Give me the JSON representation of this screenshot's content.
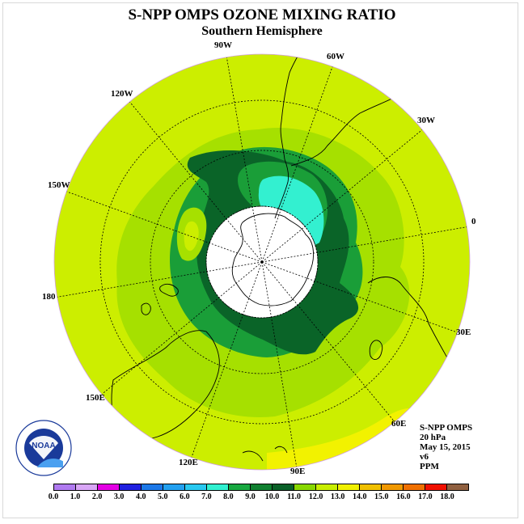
{
  "title": "S-NPP OMPS OZONE MIXING RATIO",
  "subtitle": "Southern Hemisphere",
  "longitude_labels": [
    "90W",
    "60W",
    "30W",
    "0",
    "30E",
    "60E",
    "90E",
    "120E",
    "150E",
    "180",
    "150W",
    "120W"
  ],
  "info": {
    "instrument": "S-NPP OMPS",
    "level": "20 hPa",
    "date": "May 15, 2015",
    "version": "v6",
    "units": "PPM"
  },
  "colorbar": {
    "ticks": [
      "0.0",
      "1.0",
      "2.0",
      "3.0",
      "4.0",
      "5.0",
      "6.0",
      "7.0",
      "8.0",
      "9.0",
      "10.0",
      "11.0",
      "12.0",
      "13.0",
      "14.0",
      "15.0",
      "16.0",
      "17.0",
      "18.0"
    ],
    "colors": [
      "#b07af0",
      "#d9a6f7",
      "#e400e4",
      "#2020e0",
      "#1c78e8",
      "#22a0f0",
      "#28c8f0",
      "#30f0d0",
      "#18a840",
      "#108030",
      "#0a6028",
      "#88d800",
      "#c8ee00",
      "#f0f000",
      "#f0c000",
      "#f09800",
      "#f07000",
      "#f01000",
      "#906040"
    ]
  },
  "logo": {
    "text": "NOAA",
    "ring_text": "NATIONAL OCEANIC AND ATMOSPHERIC ADMINISTRATION · U.S. DEPARTMENT OF COMMERCE"
  },
  "colors": {
    "background_field": "#ccee00",
    "ring_10_11": "#a6e000",
    "ring_9_10": "#1a9e38",
    "core_8_9": "#0a6428",
    "high_7_8": "#33f0d0",
    "edge_12_13": "#f2f200",
    "polar_night": "#ffffff"
  }
}
